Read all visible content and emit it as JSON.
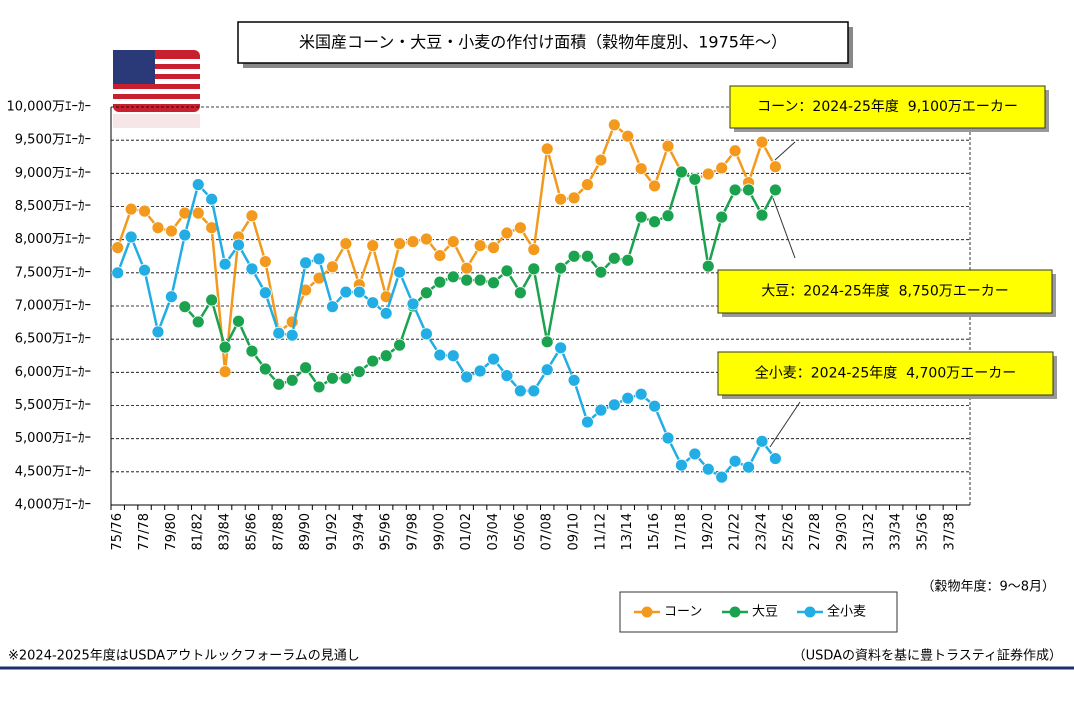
{
  "chart_data": {
    "type": "line",
    "title": "米国産コーン・大豆・小麦の作付け面積（穀物年度別、1975年～）",
    "categories": [
      "75/76",
      null,
      "77/78",
      null,
      "79/80",
      null,
      "81/82",
      null,
      "83/84",
      null,
      "85/86",
      null,
      "87/88",
      null,
      "89/90",
      null,
      "91/92",
      null,
      "93/94",
      null,
      "95/96",
      null,
      "97/98",
      null,
      "99/00",
      null,
      "01/02",
      null,
      "03/04",
      null,
      "05/06",
      null,
      "07/08",
      null,
      "09/10",
      null,
      "11/12",
      null,
      "13/14",
      null,
      "15/16",
      null,
      "17/18",
      null,
      "19/20",
      null,
      "21/22",
      null,
      "23/24",
      null,
      "25/26",
      null,
      "27/28",
      null,
      "29/30",
      null,
      "31/32",
      null,
      "33/34",
      null,
      "35/36",
      null,
      "37/38",
      null
    ],
    "series": [
      {
        "name": "コーン",
        "color": "#f39a1e",
        "values": [
          7880,
          8460,
          8430,
          8180,
          8130,
          8400,
          8400,
          8180,
          6010,
          8040,
          8360,
          7670,
          6610,
          6760,
          7240,
          7420,
          7590,
          7940,
          7320,
          7910,
          7140,
          7940,
          7970,
          8010,
          7760,
          7970,
          7570,
          7910,
          7880,
          8100,
          8180,
          7850,
          9370,
          8610,
          8630,
          8830,
          9200,
          9730,
          9560,
          9070,
          8810,
          9410,
          9020,
          8910,
          8990,
          9080,
          9340,
          8860,
          9470,
          9100,
          null,
          null,
          null,
          null,
          null,
          null,
          null,
          null,
          null,
          null,
          null,
          null,
          null,
          null
        ]
      },
      {
        "name": "大豆",
        "color": "#1aa24e",
        "values": [
          null,
          null,
          null,
          null,
          null,
          6990,
          6760,
          7090,
          6380,
          6770,
          6320,
          6050,
          5820,
          5880,
          6070,
          5780,
          5910,
          5910,
          6010,
          6170,
          6250,
          6410,
          7000,
          7200,
          7360,
          7440,
          7390,
          7390,
          7350,
          7530,
          7200,
          7560,
          6460,
          7570,
          7750,
          7750,
          7510,
          7720,
          7690,
          8340,
          8270,
          8360,
          9020,
          8910,
          7600,
          8340,
          8750,
          8750,
          8370,
          8750,
          null,
          null,
          null,
          null,
          null,
          null,
          null,
          null,
          null,
          null,
          null,
          null,
          null,
          null
        ]
      },
      {
        "name": "全小麦",
        "color": "#22ade4",
        "values": [
          7500,
          8040,
          7540,
          6610,
          7140,
          8070,
          8830,
          8610,
          7630,
          7920,
          7560,
          7200,
          6590,
          6560,
          7650,
          7710,
          6990,
          7210,
          7210,
          7050,
          6890,
          7510,
          7030,
          6580,
          6260,
          6250,
          5930,
          6020,
          6200,
          5950,
          5720,
          5720,
          6040,
          6370,
          5880,
          5250,
          5430,
          5510,
          5610,
          5670,
          5490,
          5010,
          4600,
          4770,
          4540,
          4420,
          4660,
          4570,
          4960,
          4700,
          null,
          null,
          null,
          null,
          null,
          null,
          null,
          null,
          null,
          null,
          null,
          null,
          null,
          null
        ]
      }
    ],
    "ylim": [
      4000,
      10000
    ],
    "yticks": [
      {
        "value": 4000,
        "label": "4,000万ｴｰｶｰ"
      },
      {
        "value": 4500,
        "label": "4,500万ｴｰｶｰ"
      },
      {
        "value": 5000,
        "label": "5,000万ｴｰｶｰ"
      },
      {
        "value": 5500,
        "label": "5,500万ｴｰｶｰ"
      },
      {
        "value": 6000,
        "label": "6,000万ｴｰｶｰ"
      },
      {
        "value": 6500,
        "label": "6,500万ｴｰｶｰ"
      },
      {
        "value": 7000,
        "label": "7,000万ｴｰｶｰ"
      },
      {
        "value": 7500,
        "label": "7,500万ｴｰｶｰ"
      },
      {
        "value": 8000,
        "label": "8,000万ｴｰｶｰ"
      },
      {
        "value": 8500,
        "label": "8,500万ｴｰｶｰ"
      },
      {
        "value": 9000,
        "label": "9,000万ｴｰｶｰ"
      },
      {
        "value": 9500,
        "label": "9,500万ｴｰｶｰ"
      },
      {
        "value": 10000,
        "label": "10,000万ｴｰｶｰ"
      }
    ],
    "grid": true,
    "legend": "bottom",
    "annotations": [
      "コーン：2024-25年度  9,100万エーカー",
      "大豆：2024-25年度  8,750万エーカー",
      "全小麦：2024-25年度  4,700万エーカー"
    ],
    "x_note": "（穀物年度：9～8月）",
    "footnote": "※2024-2025年度はUSDAアウトルックフォーラムの見通し",
    "source": "（USDAの資料を基に豊トラスティ証券作成）"
  }
}
